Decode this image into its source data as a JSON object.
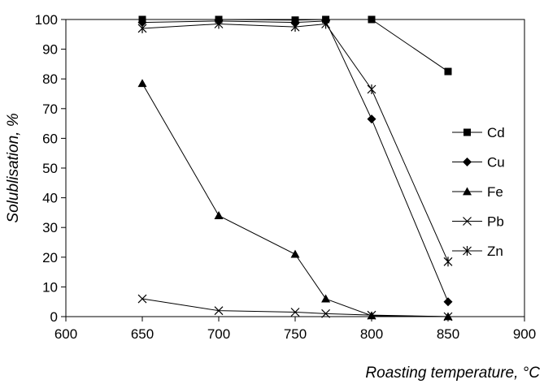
{
  "chart_data": {
    "type": "line",
    "xlabel": "Roasting temperature, °C",
    "ylabel": "Solublisation, %",
    "xlim": [
      600,
      900
    ],
    "ylim": [
      0,
      100
    ],
    "x_ticks": [
      "600",
      "650",
      "700",
      "750",
      "800",
      "850",
      "900"
    ],
    "y_ticks": [
      "0",
      "10",
      "20",
      "30",
      "40",
      "50",
      "60",
      "70",
      "80",
      "90",
      "100"
    ],
    "grid": false,
    "legend_position": "right",
    "series": [
      {
        "name": "Cd",
        "marker": "square",
        "points": [
          [
            650,
            100
          ],
          [
            700,
            100
          ],
          [
            750,
            99.8
          ],
          [
            770,
            100
          ],
          [
            800,
            100
          ],
          [
            850,
            82.5
          ]
        ]
      },
      {
        "name": "Cu",
        "marker": "diamond",
        "points": [
          [
            650,
            99
          ],
          [
            700,
            99.5
          ],
          [
            750,
            99
          ],
          [
            770,
            99.5
          ],
          [
            800,
            66.5
          ],
          [
            850,
            5
          ]
        ]
      },
      {
        "name": "Fe",
        "marker": "triangle",
        "points": [
          [
            650,
            78.5
          ],
          [
            700,
            34
          ],
          [
            750,
            21
          ],
          [
            770,
            6
          ],
          [
            800,
            0.3
          ],
          [
            850,
            0
          ]
        ]
      },
      {
        "name": "Pb",
        "marker": "x",
        "points": [
          [
            650,
            6
          ],
          [
            700,
            2
          ],
          [
            750,
            1.5
          ],
          [
            770,
            1
          ],
          [
            800,
            0.5
          ],
          [
            850,
            0
          ]
        ]
      },
      {
        "name": "Zn",
        "marker": "star",
        "points": [
          [
            650,
            97
          ],
          [
            700,
            98.5
          ],
          [
            750,
            97.5
          ],
          [
            770,
            98.5
          ],
          [
            800,
            76.5
          ],
          [
            850,
            18.5
          ]
        ]
      }
    ]
  }
}
